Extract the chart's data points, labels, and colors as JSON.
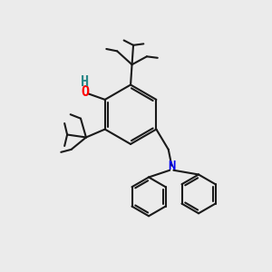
{
  "bg_color": "#ebebeb",
  "bond_color": "#1a1a1a",
  "o_color": "#ff0000",
  "h_color": "#2a8888",
  "n_color": "#0000ee",
  "lw": 1.5,
  "figsize": [
    3.0,
    3.0
  ],
  "dpi": 100,
  "xlim": [
    0,
    10
  ],
  "ylim": [
    0,
    10
  ]
}
